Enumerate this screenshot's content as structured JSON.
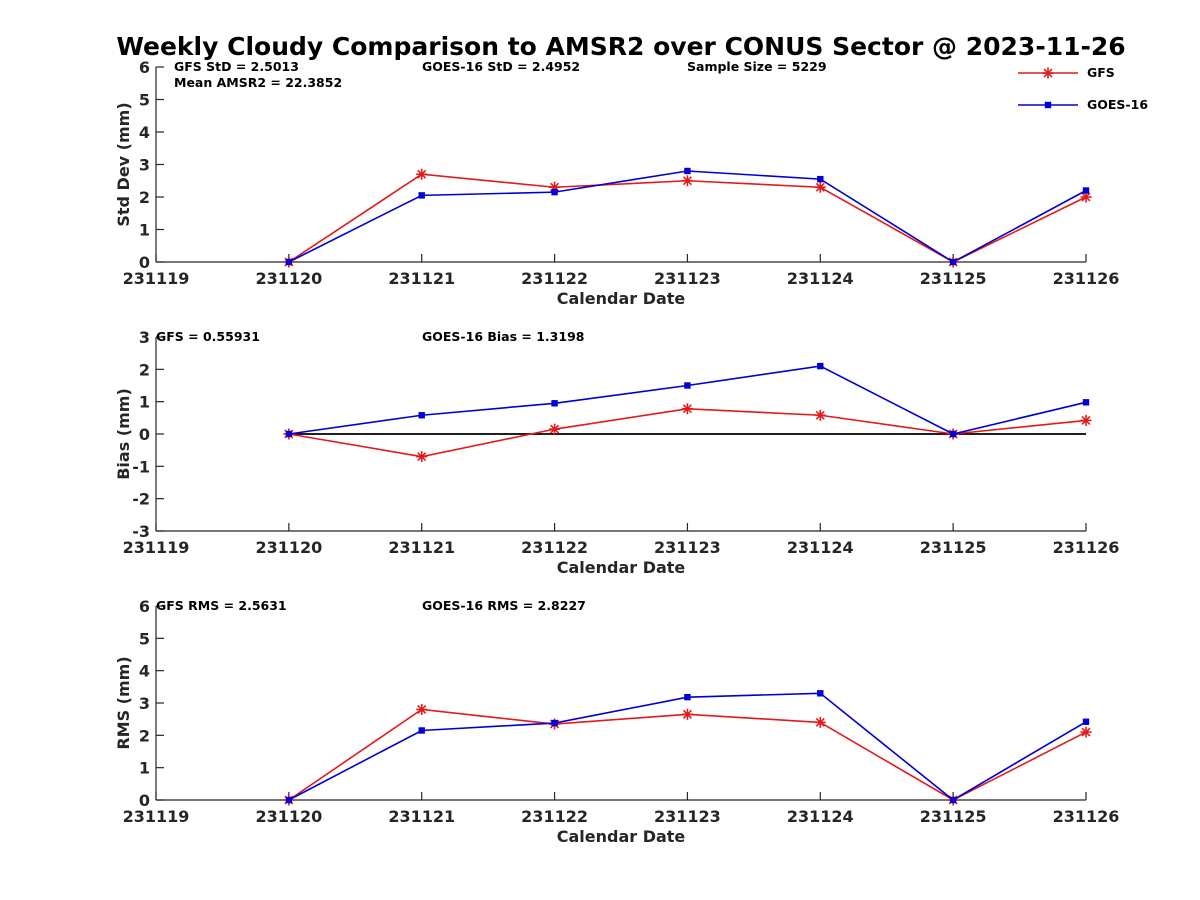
{
  "title": "Weekly Cloudy Comparison to AMSR2 over CONUS Sector @ 2023-11-26",
  "colors": {
    "GFS": "#e31a1c",
    "GOES-16": "#0000d4",
    "axis": "#262626",
    "zero_line": "#000000"
  },
  "legend": {
    "placement": "top-right",
    "entries": [
      {
        "name": "GFS",
        "marker": "asterisk"
      },
      {
        "name": "GOES-16",
        "marker": "square"
      }
    ]
  },
  "chart_data": [
    {
      "type": "line",
      "xlabel": "Calendar Date",
      "ylabel": "Std Dev (mm)",
      "x": [
        "231119",
        "231120",
        "231121",
        "231122",
        "231123",
        "231124",
        "231125",
        "231126"
      ],
      "ylim": [
        0,
        6
      ],
      "yticks": [
        "0",
        "1",
        "2",
        "3",
        "4",
        "5",
        "6"
      ],
      "grid": false,
      "series": [
        {
          "name": "GFS",
          "points": [
            [
              "231120",
              0.0
            ],
            [
              "231121",
              2.7
            ],
            [
              "231122",
              2.3
            ],
            [
              "231123",
              2.5
            ],
            [
              "231124",
              2.3
            ],
            [
              "231125",
              0.0
            ],
            [
              "231126",
              2.0
            ]
          ]
        },
        {
          "name": "GOES-16",
          "points": [
            [
              "231120",
              0.0
            ],
            [
              "231121",
              2.05
            ],
            [
              "231122",
              2.15
            ],
            [
              "231123",
              2.8
            ],
            [
              "231124",
              2.55
            ],
            [
              "231125",
              0.0
            ],
            [
              "231126",
              2.2
            ]
          ]
        }
      ],
      "annotations": [
        "GFS StD = 2.5013",
        "Mean AMSR2 = 22.3852",
        "GOES-16 StD = 2.4952",
        "Sample Size = 5229"
      ]
    },
    {
      "type": "line",
      "xlabel": "Calendar Date",
      "ylabel": "Bias (mm)",
      "x": [
        "231119",
        "231120",
        "231121",
        "231122",
        "231123",
        "231124",
        "231125",
        "231126"
      ],
      "ylim": [
        -3,
        3
      ],
      "yticks": [
        "-3",
        "-2",
        "-1",
        "0",
        "1",
        "2",
        "3"
      ],
      "grid": false,
      "zero_line": true,
      "series": [
        {
          "name": "GFS",
          "points": [
            [
              "231120",
              0.0
            ],
            [
              "231121",
              -0.7
            ],
            [
              "231122",
              0.15
            ],
            [
              "231123",
              0.78
            ],
            [
              "231124",
              0.58
            ],
            [
              "231125",
              0.0
            ],
            [
              "231126",
              0.42
            ]
          ]
        },
        {
          "name": "GOES-16",
          "points": [
            [
              "231120",
              0.0
            ],
            [
              "231121",
              0.58
            ],
            [
              "231122",
              0.95
            ],
            [
              "231123",
              1.5
            ],
            [
              "231124",
              2.1
            ],
            [
              "231125",
              0.0
            ],
            [
              "231126",
              0.98
            ]
          ]
        }
      ],
      "annotations": [
        "GFS = 0.55931",
        "GOES-16 Bias  = 1.3198"
      ]
    },
    {
      "type": "line",
      "xlabel": "Calendar Date",
      "ylabel": "RMS (mm)",
      "x": [
        "231119",
        "231120",
        "231121",
        "231122",
        "231123",
        "231124",
        "231125",
        "231126"
      ],
      "ylim": [
        0,
        6
      ],
      "yticks": [
        "0",
        "1",
        "2",
        "3",
        "4",
        "5",
        "6"
      ],
      "grid": false,
      "series": [
        {
          "name": "GFS",
          "points": [
            [
              "231120",
              0.0
            ],
            [
              "231121",
              2.8
            ],
            [
              "231122",
              2.35
            ],
            [
              "231123",
              2.65
            ],
            [
              "231124",
              2.4
            ],
            [
              "231125",
              0.0
            ],
            [
              "231126",
              2.1
            ]
          ]
        },
        {
          "name": "GOES-16",
          "points": [
            [
              "231120",
              0.0
            ],
            [
              "231121",
              2.15
            ],
            [
              "231122",
              2.38
            ],
            [
              "231123",
              3.18
            ],
            [
              "231124",
              3.3
            ],
            [
              "231125",
              0.0
            ],
            [
              "231126",
              2.42
            ]
          ]
        }
      ],
      "annotations": [
        "GFS RMS = 2.5631",
        "GOES-16 RMS = 2.8227"
      ]
    }
  ]
}
